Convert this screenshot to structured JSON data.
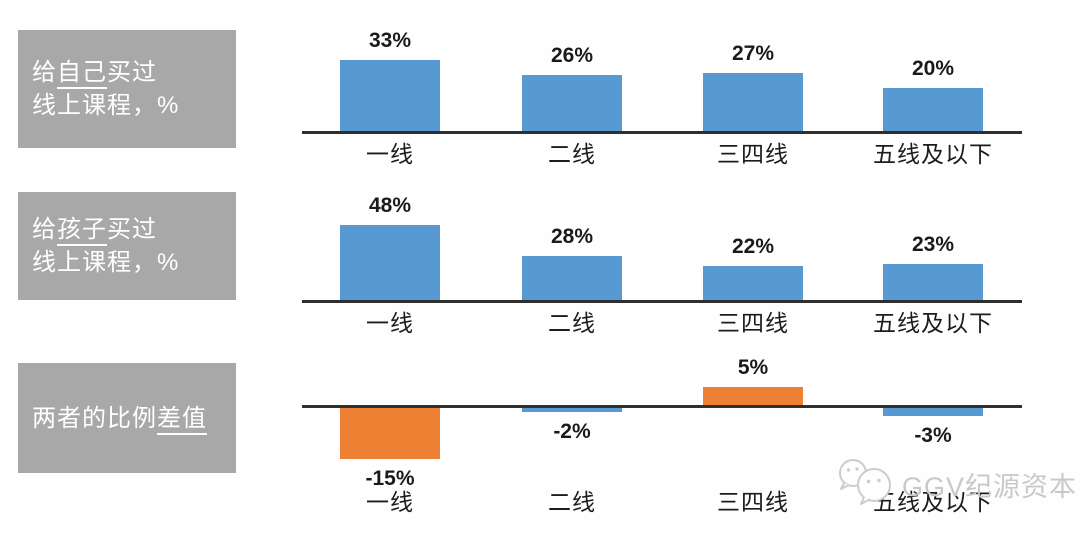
{
  "colors": {
    "bar_blue": "#5999d2",
    "bar_orange": "#ee8033",
    "label_box_bg": "#a8a8a8",
    "label_text": "#ffffff",
    "axis": "#2f2f2f",
    "value_text": "#1a1a1a",
    "watermark": "#c9c9c9"
  },
  "watermark": {
    "text": "GGV纪源资本"
  },
  "chart_data": [
    {
      "type": "bar",
      "title_plain": "给自己买过线上课程，%",
      "title_lines": [
        [
          {
            "t": "给"
          },
          {
            "t": "自己",
            "u": true
          },
          {
            "t": "买过"
          }
        ],
        [
          {
            "t": "线上课程，%"
          }
        ]
      ],
      "categories": [
        "一线",
        "二线",
        "三四线",
        "五线及以下"
      ],
      "values": [
        33,
        26,
        27,
        20
      ],
      "value_labels": [
        "33%",
        "26%",
        "27%",
        "20%"
      ],
      "bar_colors": [
        "blue",
        "blue",
        "blue",
        "blue"
      ],
      "unit": "%",
      "baseline": 0
    },
    {
      "type": "bar",
      "title_plain": "给孩子买过线上课程，%",
      "title_lines": [
        [
          {
            "t": "给"
          },
          {
            "t": "孩子",
            "u": true
          },
          {
            "t": "买过"
          }
        ],
        [
          {
            "t": "线上课程，%"
          }
        ]
      ],
      "categories": [
        "一线",
        "二线",
        "三四线",
        "五线及以下"
      ],
      "values": [
        48,
        28,
        22,
        23
      ],
      "value_labels": [
        "48%",
        "28%",
        "22%",
        "23%"
      ],
      "bar_colors": [
        "blue",
        "blue",
        "blue",
        "blue"
      ],
      "unit": "%",
      "baseline": 0
    },
    {
      "type": "bar",
      "title_plain": "两者的比例差值",
      "title_lines": [
        [
          {
            "t": "两者的比例"
          },
          {
            "t": "差值",
            "u": true
          }
        ]
      ],
      "categories": [
        "一线",
        "二线",
        "三四线",
        "五线及以下"
      ],
      "values": [
        -15,
        -2,
        5,
        -3
      ],
      "value_labels": [
        "-15%",
        "-2%",
        "5%",
        "-3%"
      ],
      "bar_colors": [
        "orange",
        "blue",
        "orange",
        "blue"
      ],
      "unit": "%",
      "baseline": 0
    }
  ]
}
